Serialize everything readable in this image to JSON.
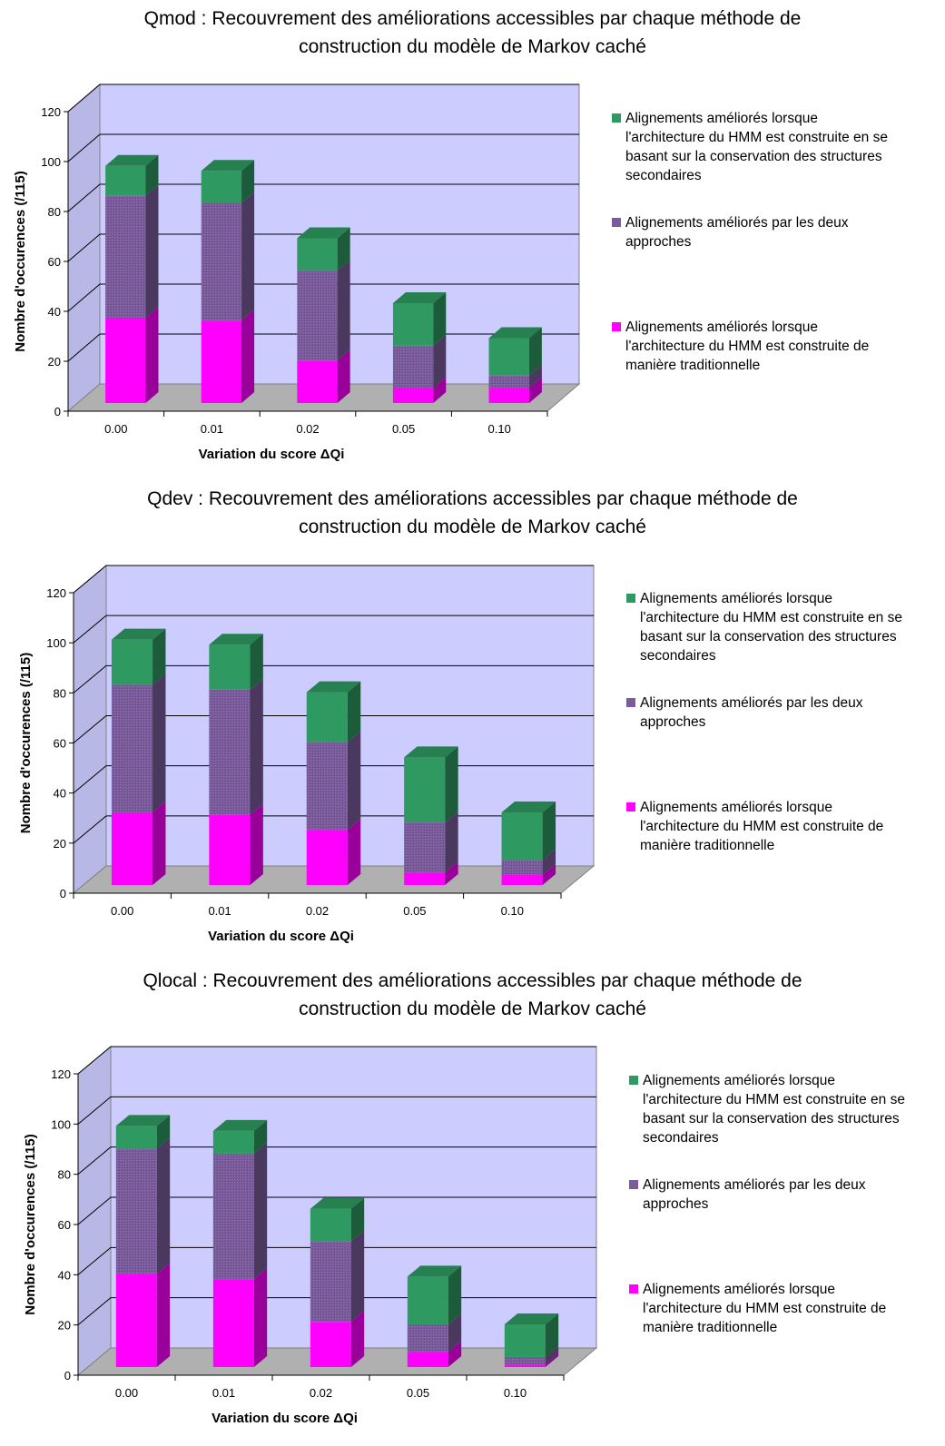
{
  "colors": {
    "plot_bg": "#ccccff",
    "gridline": "#000000",
    "series_green": "#2e9960",
    "series_green_side": "#1c5c3a",
    "series_green_top": "#26804f",
    "series_purple": "#7a5c9c",
    "series_purple_side": "#4a385e",
    "series_purple_top": "#664d82",
    "series_magenta": "#ff00ff",
    "series_magenta_side": "#99009a",
    "series_magenta_top": "#d400d4"
  },
  "chart_data": [
    {
      "type": "bar",
      "stacked": true,
      "three_d": true,
      "title_line1": "Qmod : Recouvrement des améliorations accessibles par chaque méthode de",
      "title_line2": "construction du modèle de Markov caché",
      "xlabel": "Variation du score ΔQi",
      "ylabel": "Nombre d'occurences (/115)",
      "ylim": [
        0,
        120
      ],
      "yticks": [
        "0",
        "20",
        "40",
        "60",
        "80",
        "100",
        "120"
      ],
      "categories": [
        "0.00",
        "0.01",
        "0.02",
        "0.05",
        "0.10"
      ],
      "legend_position": "right",
      "series": [
        {
          "key": "magenta",
          "values": [
            34,
            33,
            17,
            6,
            6
          ]
        },
        {
          "key": "purple",
          "values": [
            49,
            47,
            36,
            17,
            5
          ]
        },
        {
          "key": "green",
          "values": [
            12,
            13,
            13,
            17,
            15
          ]
        }
      ],
      "legend": [
        {
          "key": "green",
          "lines": [
            "Alignements améliorés lorsque",
            "l'architecture du HMM est construite en se",
            "basant sur la conservation des structures",
            "secondaires"
          ]
        },
        {
          "key": "purple",
          "lines": [
            "Alignements améliorés par les deux",
            "approches"
          ]
        },
        {
          "key": "magenta",
          "lines": [
            "Alignements améliorés lorsque",
            "l'architecture du HMM est construite de",
            "manière traditionnelle"
          ]
        }
      ]
    },
    {
      "type": "bar",
      "stacked": true,
      "three_d": true,
      "title_line1": "Qdev : Recouvrement des améliorations accessibles par chaque méthode de",
      "title_line2": "construction du modèle de Markov caché",
      "xlabel": "Variation du score ΔQi",
      "ylabel": "Nombre d'occurences (/115)",
      "ylim": [
        0,
        120
      ],
      "yticks": [
        "0",
        "20",
        "40",
        "60",
        "80",
        "100",
        "120"
      ],
      "categories": [
        "0.00",
        "0.01",
        "0.02",
        "0.05",
        "0.10"
      ],
      "legend_position": "right",
      "series": [
        {
          "key": "magenta",
          "values": [
            29,
            28,
            22,
            5,
            4
          ]
        },
        {
          "key": "purple",
          "values": [
            51,
            50,
            35,
            20,
            6
          ]
        },
        {
          "key": "green",
          "values": [
            18,
            18,
            20,
            26,
            19
          ]
        }
      ],
      "legend": [
        {
          "key": "green",
          "lines": [
            "Alignements améliorés lorsque",
            "l'architecture du HMM est construite en se",
            "basant sur la conservation des structures",
            "secondaires"
          ]
        },
        {
          "key": "purple",
          "lines": [
            "Alignements améliorés par les deux",
            "approches"
          ]
        },
        {
          "key": "magenta",
          "lines": [
            "Alignements améliorés lorsque",
            "l'architecture du HMM est construite de",
            "manière traditionnelle"
          ]
        }
      ]
    },
    {
      "type": "bar",
      "stacked": true,
      "three_d": true,
      "title_line1": "Qlocal : Recouvrement des améliorations accessibles par chaque méthode de",
      "title_line2": "construction du modèle de Markov caché",
      "xlabel": "Variation du score ΔQi",
      "ylabel": "Nombre d'occurences (/115)",
      "ylim": [
        0,
        120
      ],
      "yticks": [
        "0",
        "20",
        "40",
        "60",
        "80",
        "100",
        "120"
      ],
      "categories": [
        "0.00",
        "0.01",
        "0.02",
        "0.05",
        "0.10"
      ],
      "legend_position": "right",
      "series": [
        {
          "key": "magenta",
          "values": [
            37,
            35,
            18,
            6,
            1
          ]
        },
        {
          "key": "purple",
          "values": [
            50,
            50,
            32,
            11,
            3
          ]
        },
        {
          "key": "green",
          "values": [
            9,
            9,
            13,
            19,
            13
          ]
        }
      ],
      "legend": [
        {
          "key": "green",
          "lines": [
            "Alignements améliorés lorsque",
            "l'architecture du HMM est construite en se",
            "basant sur la conservation des structures",
            "secondaires"
          ]
        },
        {
          "key": "purple",
          "lines": [
            "Alignements améliorés par les deux",
            "approches"
          ]
        },
        {
          "key": "magenta",
          "lines": [
            "Alignements améliorés lorsque",
            "l'architecture du HMM est construite de",
            "manière traditionnelle"
          ]
        }
      ]
    }
  ]
}
